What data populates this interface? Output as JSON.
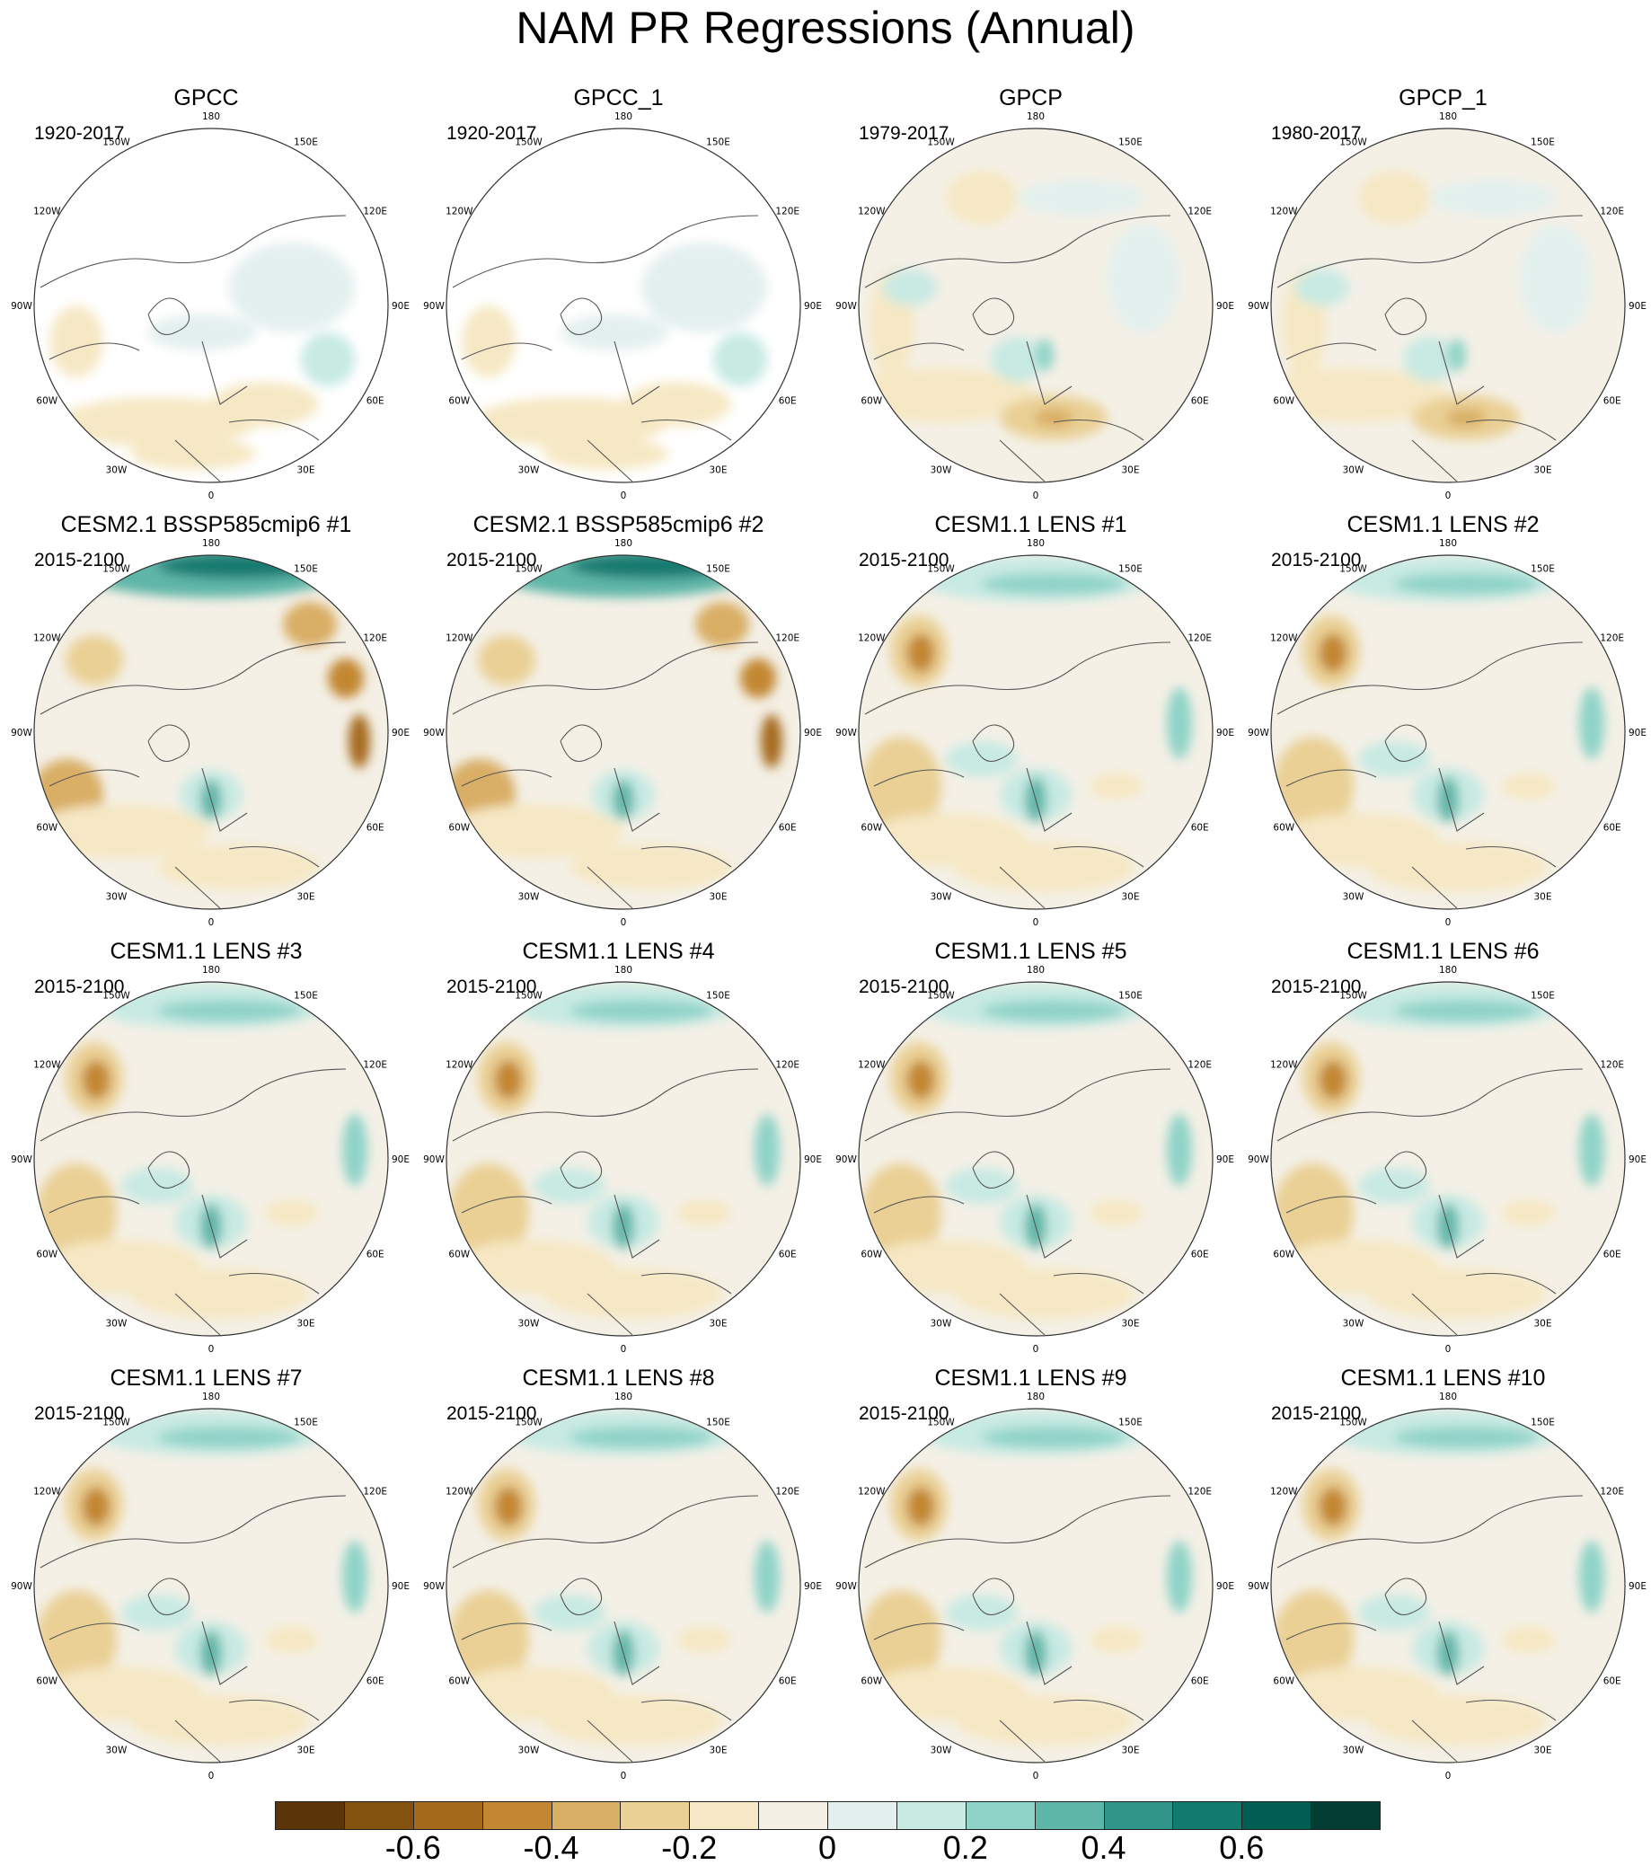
{
  "title": "NAM PR Regressions (Annual)",
  "longitude_labels": [
    "180",
    "150E",
    "120E",
    "90E",
    "60E",
    "30E",
    "0",
    "30W",
    "60W",
    "90W",
    "120W",
    "150W"
  ],
  "panels": [
    {
      "title": "GPCC",
      "period": "1920-2017",
      "field": "obs_gpcc"
    },
    {
      "title": "GPCC_1",
      "period": "1920-2017",
      "field": "obs_gpcc"
    },
    {
      "title": "GPCP",
      "period": "1979-2017",
      "field": "obs_gpcp"
    },
    {
      "title": "GPCP_1",
      "period": "1980-2017",
      "field": "obs_gpcp"
    },
    {
      "title": "CESM2.1 BSSP585cmip6 #1",
      "period": "2015-2100",
      "field": "model_strong"
    },
    {
      "title": "CESM2.1 BSSP585cmip6 #2",
      "period": "2015-2100",
      "field": "model_strong"
    },
    {
      "title": "CESM1.1 LENS #1",
      "period": "2015-2100",
      "field": "model"
    },
    {
      "title": "CESM1.1 LENS #2",
      "period": "2015-2100",
      "field": "model"
    },
    {
      "title": "CESM1.1 LENS #3",
      "period": "2015-2100",
      "field": "model"
    },
    {
      "title": "CESM1.1 LENS #4",
      "period": "2015-2100",
      "field": "model"
    },
    {
      "title": "CESM1.1 LENS #5",
      "period": "2015-2100",
      "field": "model"
    },
    {
      "title": "CESM1.1 LENS #6",
      "period": "2015-2100",
      "field": "model"
    },
    {
      "title": "CESM1.1 LENS #7",
      "period": "2015-2100",
      "field": "model"
    },
    {
      "title": "CESM1.1 LENS #8",
      "period": "2015-2100",
      "field": "model"
    },
    {
      "title": "CESM1.1 LENS #9",
      "period": "2015-2100",
      "field": "model"
    },
    {
      "title": "CESM1.1 LENS #10",
      "period": "2015-2100",
      "field": "model"
    }
  ],
  "colorbar": {
    "colors": [
      "#5b3407",
      "#84520f",
      "#a5691c",
      "#c38733",
      "#d9ae65",
      "#ead095",
      "#f6e8c4",
      "#f4f0e6",
      "#e3f0ee",
      "#c7eae3",
      "#8fd3c8",
      "#5eb6a8",
      "#31958a",
      "#137a6f",
      "#025e52",
      "#013d32"
    ],
    "tick_labels": [
      "-0.6",
      "-0.4",
      "-0.2",
      "0",
      "0.2",
      "0.4",
      "0.6"
    ],
    "tick_values": [
      -0.6,
      -0.4,
      -0.2,
      0,
      0.2,
      0.4,
      0.6
    ],
    "range": [
      -0.8,
      0.8
    ]
  }
}
